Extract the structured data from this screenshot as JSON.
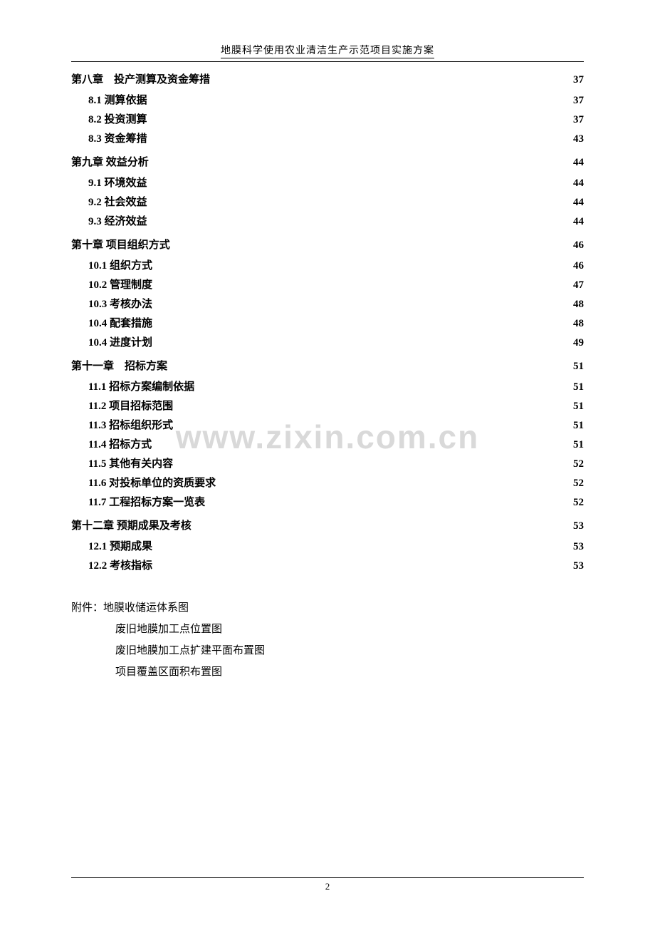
{
  "header": {
    "title": "地膜科学使用农业清洁生产示范项目实施方案"
  },
  "toc": [
    {
      "level": "chapter",
      "label": "第八章　投产测算及资金筹措",
      "page": "37"
    },
    {
      "level": "section",
      "label": "8.1 测算依据",
      "page": "37"
    },
    {
      "level": "section",
      "label": "8.2 投资测算",
      "page": "37"
    },
    {
      "level": "section",
      "label": "8.3 资金筹措",
      "page": "43"
    },
    {
      "level": "chapter",
      "label": "第九章 效益分析",
      "page": "44"
    },
    {
      "level": "section",
      "label": "9.1 环境效益",
      "page": "44"
    },
    {
      "level": "section",
      "label": "9.2 社会效益",
      "page": "44"
    },
    {
      "level": "section",
      "label": "9.3 经济效益",
      "page": "44"
    },
    {
      "level": "chapter",
      "label": "第十章 项目组织方式",
      "page": "46"
    },
    {
      "level": "section",
      "label": "10.1 组织方式",
      "page": "46"
    },
    {
      "level": "section",
      "label": "10.2 管理制度",
      "page": "47"
    },
    {
      "level": "section",
      "label": "10.3 考核办法",
      "page": "48"
    },
    {
      "level": "section",
      "label": "10.4 配套措施",
      "page": "48"
    },
    {
      "level": "section",
      "label": "10.4 进度计划",
      "page": "49"
    },
    {
      "level": "chapter",
      "label": "第十一章　招标方案",
      "page": "51"
    },
    {
      "level": "section",
      "label": "11.1 招标方案编制依据",
      "page": "51"
    },
    {
      "level": "section",
      "label": "11.2 项目招标范围",
      "page": "51"
    },
    {
      "level": "section",
      "label": "11.3 招标组织形式",
      "page": "51"
    },
    {
      "level": "section",
      "label": "11.4 招标方式",
      "page": "51"
    },
    {
      "level": "section",
      "label": "11.5 其他有关内容",
      "page": "52"
    },
    {
      "level": "section",
      "label": "11.6 对投标单位的资质要求",
      "page": "52"
    },
    {
      "level": "section",
      "label": "11.7 工程招标方案一览表",
      "page": "52"
    },
    {
      "level": "chapter",
      "label": "第十二章 预期成果及考核",
      "page": "53"
    },
    {
      "level": "section",
      "label": "12.1 预期成果",
      "page": "53"
    },
    {
      "level": "section",
      "label": "12.2 考核指标",
      "page": "53"
    }
  ],
  "attachments": {
    "heading": "附件：地膜收储运体系图",
    "items": [
      "废旧地膜加工点位置图",
      "废旧地膜加工点扩建平面布置图",
      "项目覆盖区面积布置图"
    ]
  },
  "watermark": "www.zixin.com.cn",
  "footer": {
    "pageNumber": "2"
  },
  "style": {
    "text_color": "#000000",
    "watermark_color": "#d9d9d9",
    "background_color": "#ffffff",
    "body_fontsize": 15,
    "header_fontsize": 14,
    "watermark_fontsize": 46
  }
}
